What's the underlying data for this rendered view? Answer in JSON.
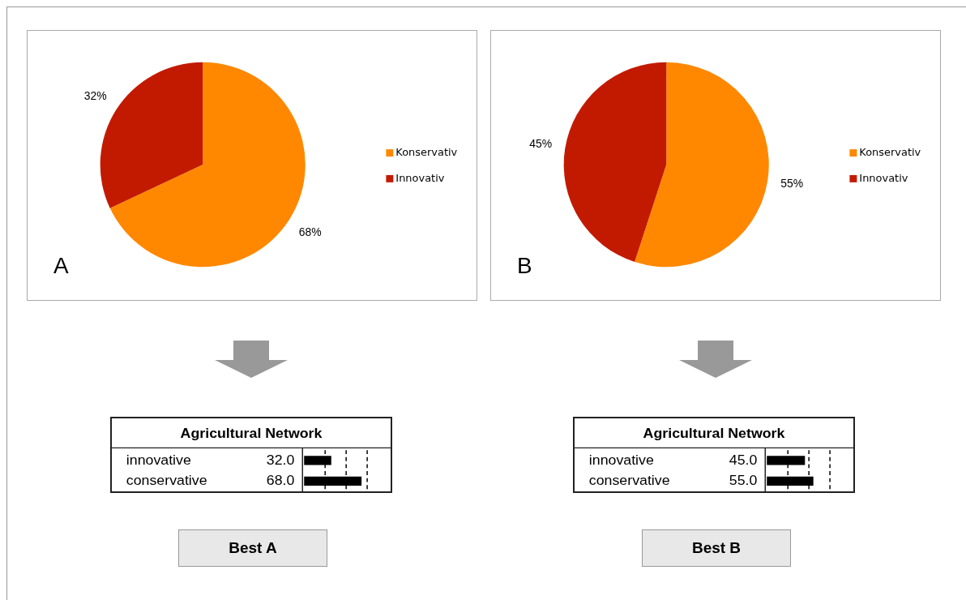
{
  "chart_data": [
    {
      "type": "pie",
      "categories": [
        "Konservativ",
        "Innovativ"
      ],
      "values": [
        68,
        32
      ],
      "colors": [
        "#ff8800",
        "#c21a00"
      ],
      "value_labels": [
        "68%",
        "32%"
      ],
      "legend": "right",
      "annotations": [
        "A"
      ]
    },
    {
      "type": "pie",
      "categories": [
        "Konservativ",
        "Innovativ"
      ],
      "values": [
        55,
        45
      ],
      "colors": [
        "#ff8800",
        "#c21a00"
      ],
      "value_labels": [
        "55%",
        "45%"
      ],
      "legend": "right",
      "annotations": [
        "B"
      ]
    },
    {
      "type": "bar",
      "orientation": "horizontal",
      "title": "Agricultural Network",
      "categories": [
        "innovative",
        "conservative"
      ],
      "values": [
        32.0,
        68.0
      ],
      "value_labels": [
        "32.0",
        "68.0"
      ],
      "color": "#000000",
      "xlim": [
        0,
        100
      ],
      "ref_lines": [
        {
          "axis": "x",
          "value": 25,
          "line_style": "dashed"
        },
        {
          "axis": "x",
          "value": 50,
          "line_style": "dashed"
        },
        {
          "axis": "x",
          "value": 75,
          "line_style": "dashed"
        }
      ],
      "annotations": [
        "Best A"
      ]
    },
    {
      "type": "bar",
      "orientation": "horizontal",
      "title": "Agricultural Network",
      "categories": [
        "innovative",
        "conservative"
      ],
      "values": [
        45.0,
        55.0
      ],
      "value_labels": [
        "45.0",
        "55.0"
      ],
      "color": "#000000",
      "xlim": [
        0,
        100
      ],
      "ref_lines": [
        {
          "axis": "x",
          "value": 25,
          "line_style": "dashed"
        },
        {
          "axis": "x",
          "value": 50,
          "line_style": "dashed"
        },
        {
          "axis": "x",
          "value": 75,
          "line_style": "dashed"
        }
      ],
      "annotations": [
        "Best B"
      ]
    }
  ]
}
